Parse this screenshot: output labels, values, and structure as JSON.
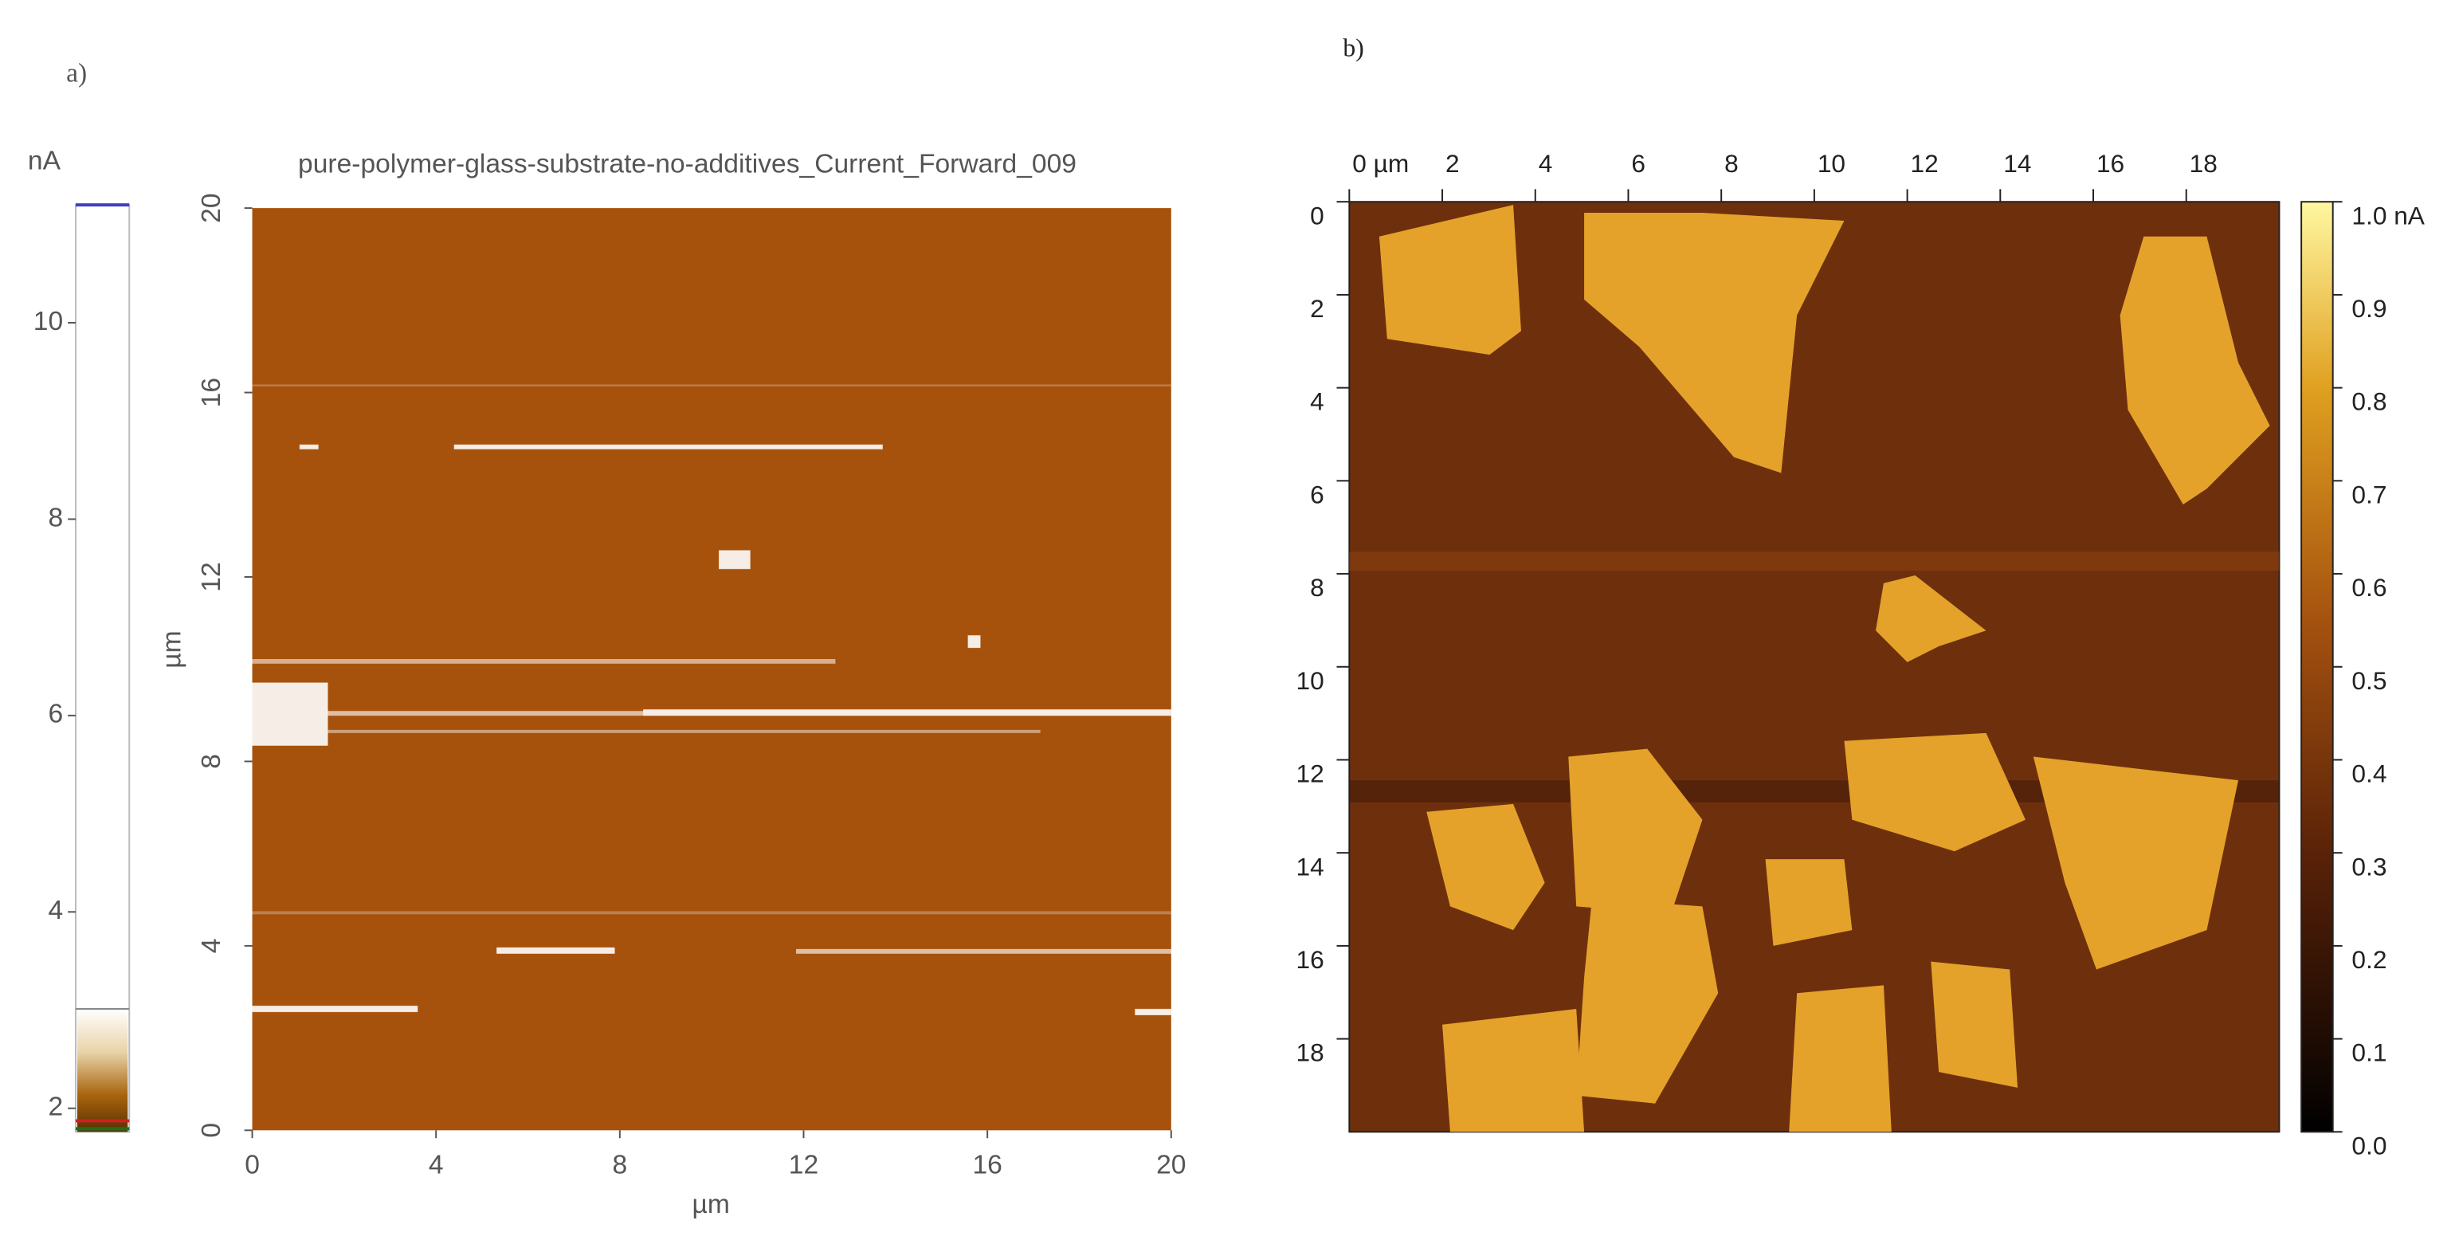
{
  "panels": [
    {
      "label": "a)",
      "colorbar": {
        "unit": "nA",
        "lim": [
          1.76,
          11.2
        ],
        "ticks": [
          2,
          4,
          6,
          8,
          10
        ]
      },
      "image": {
        "title": "pure-polymer-glass-substrate-no-additives_Current_Forward_009",
        "xlabel": "µm",
        "ylabel": "µm",
        "xlim": [
          0,
          20
        ],
        "ylim": [
          0,
          20
        ],
        "xticks": [
          0,
          4,
          8,
          12,
          16,
          20
        ],
        "yticks": [
          0,
          4,
          8,
          12,
          16,
          20
        ]
      }
    },
    {
      "label": "b)",
      "image": {
        "xlim": [
          0,
          20
        ],
        "ylim": [
          0,
          20
        ],
        "y_inverted": true,
        "xticks": [
          {
            "value": 0,
            "label": "0 µm"
          },
          2,
          4,
          6,
          8,
          10,
          12,
          14,
          16,
          18
        ],
        "yticks": [
          0,
          2,
          4,
          6,
          8,
          10,
          12,
          14,
          16,
          18
        ]
      },
      "colorbar": {
        "lim": [
          0,
          1
        ],
        "ticks": [
          {
            "value": 0,
            "label": "0.0"
          },
          0.1,
          0.2,
          0.3,
          0.4,
          0.5,
          0.6,
          0.7,
          0.8,
          0.9,
          {
            "value": 1,
            "label": "1.0 nA"
          }
        ]
      }
    }
  ]
}
